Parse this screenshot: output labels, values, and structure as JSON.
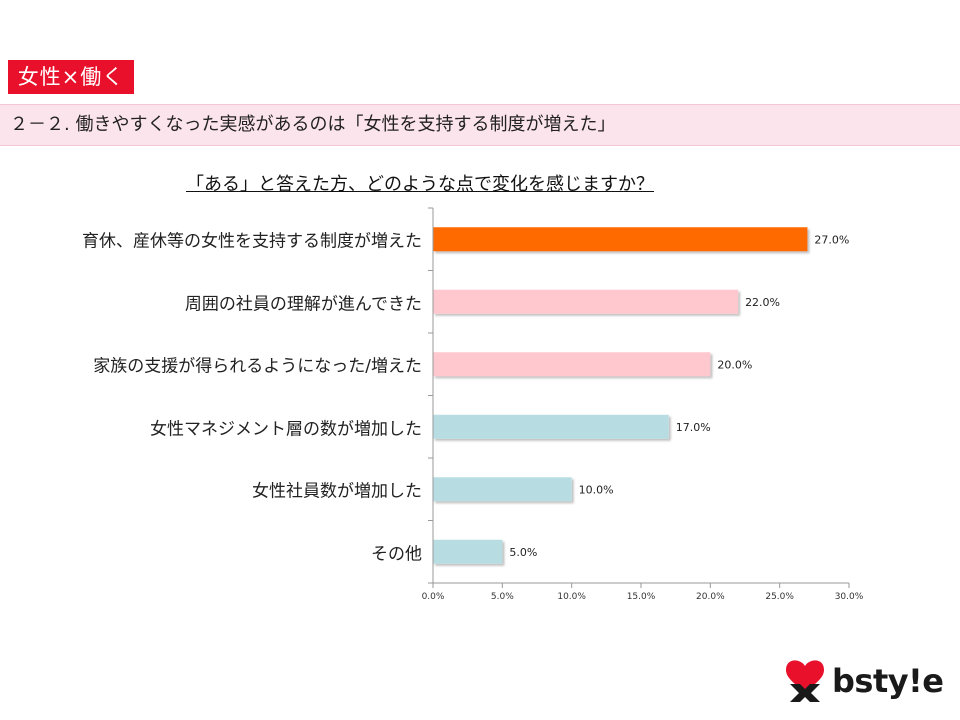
{
  "header": {
    "tag": "女性×働く",
    "subtitle": "２－２. 働きやすくなった実感があるのは「女性を支持する制度が増えた」"
  },
  "question": "「ある」と答えた方、どのような点で変化を感じますか？",
  "brand": {
    "name": "bsty!e"
  },
  "chart_data": {
    "type": "bar",
    "orientation": "horizontal",
    "categories": [
      "育休、産休等の女性を支持する制度が増えた",
      "周囲の社員の理解が進んできた",
      "家族の支援が得られるようになった/増えた",
      "女性マネジメント層の数が増加した",
      "女性社員数が増加した",
      "その他"
    ],
    "values": [
      27.0,
      22.0,
      20.0,
      17.0,
      10.0,
      5.0
    ],
    "value_labels": [
      "27.0%",
      "22.0%",
      "20.0%",
      "17.0%",
      "10.0%",
      "5.0%"
    ],
    "colors": [
      "#ff6a00",
      "#ffc7ce",
      "#ffc7ce",
      "#b7dde2",
      "#b7dde2",
      "#b7dde2"
    ],
    "xlim": [
      0,
      30
    ],
    "ticks": [
      "0.0%",
      "5.0%",
      "10.0%",
      "15.0%",
      "20.0%",
      "25.0%",
      "30.0%"
    ],
    "grid": false
  }
}
